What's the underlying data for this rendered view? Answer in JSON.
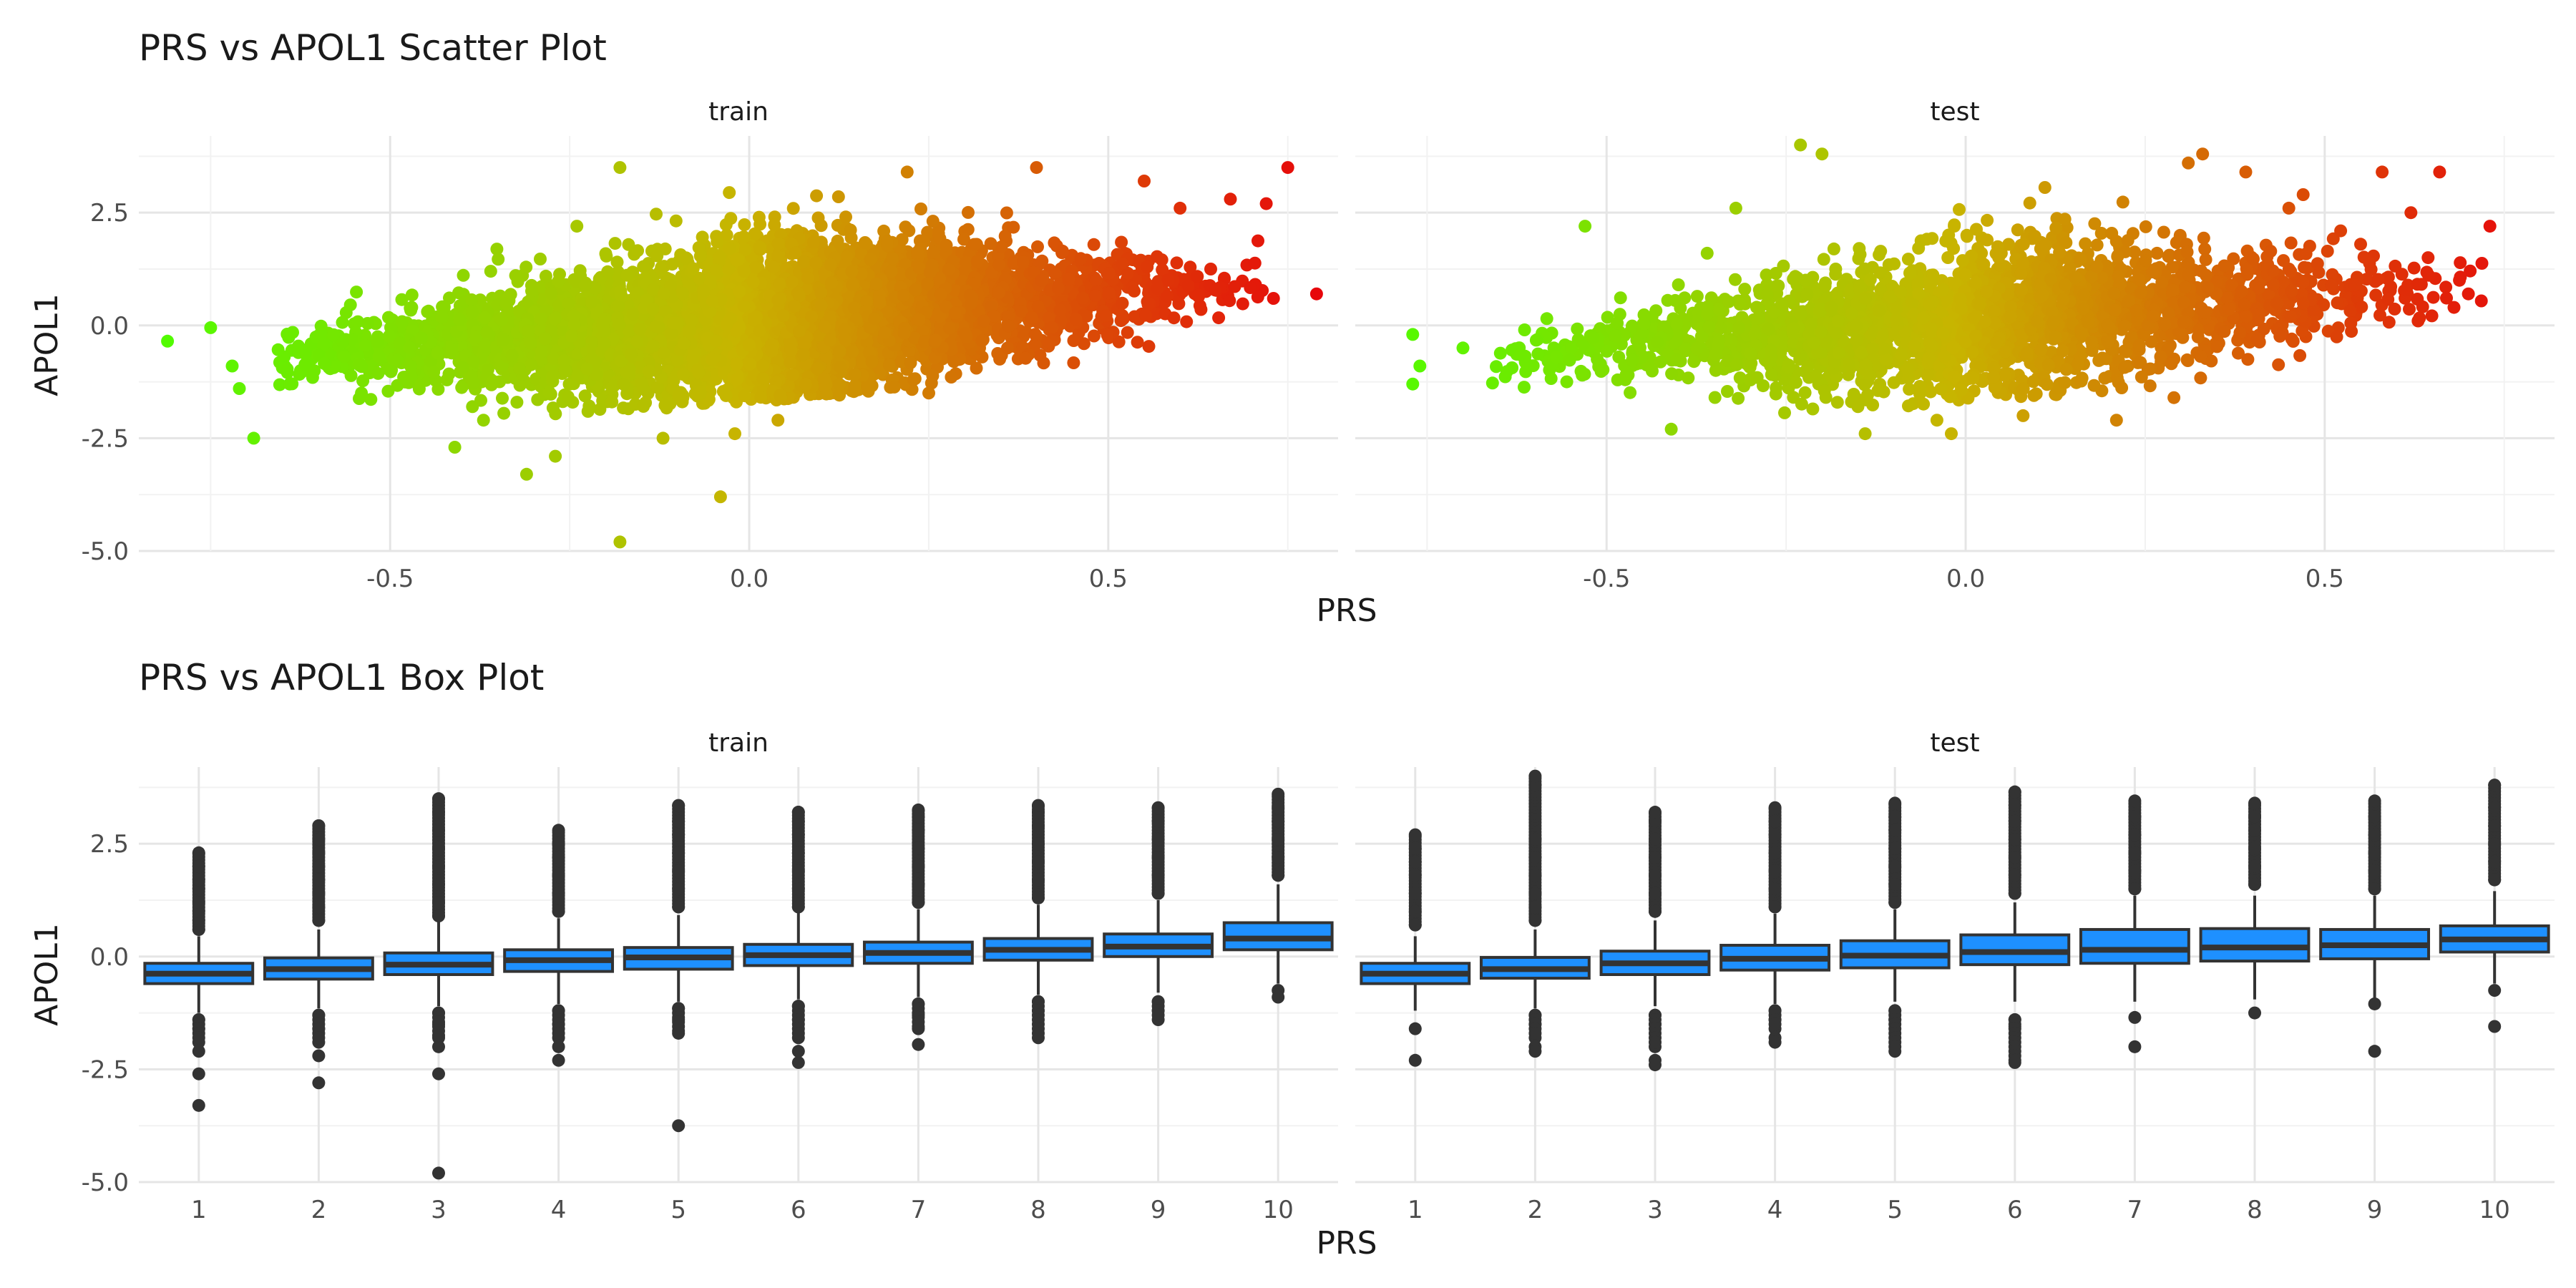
{
  "colors": {
    "low": "#4CFF00",
    "mid": "#C8B400",
    "high": "#E8000B",
    "box_fill": "#1E90FF",
    "box_line": "#333333"
  },
  "chart_data": [
    {
      "type": "scatter",
      "title": "PRS vs APOL1 Scatter Plot",
      "xlabel": "PRS",
      "ylabel": "APOL1",
      "xticks": [
        "-0.5",
        "0.0",
        "0.5"
      ],
      "xtick_values": [
        -0.5,
        0.0,
        0.5
      ],
      "yticks": [
        "-5.0",
        "-2.5",
        "0.0",
        "2.5"
      ],
      "ytick_values": [
        -5.0,
        -2.5,
        0.0,
        2.5
      ],
      "grid": true,
      "legend": "none",
      "color_by": "PRS",
      "panels": [
        {
          "name": "train",
          "xlim": [
            -0.85,
            0.82
          ],
          "ylim": [
            -5.0,
            4.2
          ],
          "n_points_approx": 8000,
          "trend": {
            "slope": 1.2,
            "intercept": 0.1
          },
          "points": [
            {
              "x": -0.81,
              "y": -0.35
            },
            {
              "x": -0.75,
              "y": -0.05
            },
            {
              "x": -0.72,
              "y": -0.9
            },
            {
              "x": -0.71,
              "y": -1.4
            },
            {
              "x": -0.69,
              "y": -2.5
            },
            {
              "x": -0.64,
              "y": -1.3
            },
            {
              "x": -0.54,
              "y": -1.5
            },
            {
              "x": -0.47,
              "y": 0.4
            },
            {
              "x": -0.41,
              "y": -2.7
            },
            {
              "x": -0.37,
              "y": -2.1
            },
            {
              "x": -0.36,
              "y": 1.2
            },
            {
              "x": -0.31,
              "y": -3.3
            },
            {
              "x": -0.27,
              "y": -2.9
            },
            {
              "x": -0.24,
              "y": 2.2
            },
            {
              "x": -0.18,
              "y": 3.5
            },
            {
              "x": -0.18,
              "y": -4.8
            },
            {
              "x": -0.12,
              "y": -2.5
            },
            {
              "x": -0.04,
              "y": -3.8
            },
            {
              "x": -0.02,
              "y": -2.4
            },
            {
              "x": 0.04,
              "y": -2.1
            },
            {
              "x": 0.22,
              "y": 3.4
            },
            {
              "x": 0.25,
              "y": -1.5
            },
            {
              "x": 0.4,
              "y": 3.5
            },
            {
              "x": 0.55,
              "y": 3.2
            },
            {
              "x": 0.6,
              "y": 2.6
            },
            {
              "x": 0.67,
              "y": 2.8
            },
            {
              "x": 0.72,
              "y": 2.7
            },
            {
              "x": 0.75,
              "y": 3.5
            },
            {
              "x": 0.73,
              "y": 0.6
            },
            {
              "x": 0.79,
              "y": 0.7
            }
          ]
        },
        {
          "name": "test",
          "xlim": [
            -0.85,
            0.82
          ],
          "ylim": [
            -5.0,
            4.2
          ],
          "n_points_approx": 3500,
          "trend": {
            "slope": 1.2,
            "intercept": 0.1
          },
          "points": [
            {
              "x": -0.77,
              "y": -0.2
            },
            {
              "x": -0.76,
              "y": -0.9
            },
            {
              "x": -0.77,
              "y": -1.3
            },
            {
              "x": -0.7,
              "y": -0.5
            },
            {
              "x": -0.62,
              "y": -0.65
            },
            {
              "x": -0.57,
              "y": -0.7
            },
            {
              "x": -0.53,
              "y": 2.2
            },
            {
              "x": -0.47,
              "y": -1.1
            },
            {
              "x": -0.4,
              "y": 0.9
            },
            {
              "x": -0.36,
              "y": 1.6
            },
            {
              "x": -0.32,
              "y": 2.6
            },
            {
              "x": -0.23,
              "y": 4.0
            },
            {
              "x": -0.41,
              "y": -2.3
            },
            {
              "x": -0.2,
              "y": 3.8
            },
            {
              "x": -0.15,
              "y": -1.8
            },
            {
              "x": -0.14,
              "y": -2.4
            },
            {
              "x": -0.04,
              "y": -2.1
            },
            {
              "x": -0.02,
              "y": -2.4
            },
            {
              "x": 0.08,
              "y": -2.0
            },
            {
              "x": 0.21,
              "y": -2.1
            },
            {
              "x": 0.29,
              "y": -1.6
            },
            {
              "x": 0.31,
              "y": 3.6
            },
            {
              "x": 0.33,
              "y": 3.8
            },
            {
              "x": 0.39,
              "y": 3.4
            },
            {
              "x": 0.45,
              "y": 2.6
            },
            {
              "x": 0.47,
              "y": 2.9
            },
            {
              "x": 0.55,
              "y": 1.8
            },
            {
              "x": 0.58,
              "y": 3.4
            },
            {
              "x": 0.62,
              "y": 2.5
            },
            {
              "x": 0.66,
              "y": 3.4
            },
            {
              "x": 0.63,
              "y": 0.1
            },
            {
              "x": 0.68,
              "y": 0.4
            },
            {
              "x": 0.7,
              "y": 0.7
            },
            {
              "x": 0.73,
              "y": 2.2
            }
          ]
        }
      ]
    },
    {
      "type": "box",
      "title": "PRS vs APOL1 Box Plot",
      "xlabel": "PRS",
      "ylabel": "APOL1",
      "categories": [
        "1",
        "2",
        "3",
        "4",
        "5",
        "6",
        "7",
        "8",
        "9",
        "10"
      ],
      "yticks": [
        "-5.0",
        "-2.5",
        "0.0",
        "2.5"
      ],
      "ytick_values": [
        -5.0,
        -2.5,
        0.0,
        2.5
      ],
      "ylim": [
        -5.0,
        4.2
      ],
      "grid": true,
      "panels": [
        {
          "name": "train",
          "boxes": [
            {
              "q1": -0.6,
              "median": -0.38,
              "q3": -0.15,
              "whisker_low": -1.25,
              "whisker_high": 0.45,
              "outliers_high": [
                0.6,
                0.8,
                1.0,
                1.2,
                1.5,
                1.7,
                2.0,
                2.3
              ],
              "outliers_low": [
                -1.4,
                -1.6,
                -1.9,
                -2.1,
                -2.6,
                -3.3
              ]
            },
            {
              "q1": -0.5,
              "median": -0.28,
              "q3": -0.03,
              "whisker_low": -1.15,
              "whisker_high": 0.6,
              "outliers_high": [
                0.8,
                1.1,
                1.4,
                1.7,
                2.0,
                2.3,
                2.6,
                2.9
              ],
              "outliers_low": [
                -1.3,
                -1.6,
                -1.9,
                -2.2,
                -2.8
              ]
            },
            {
              "q1": -0.4,
              "median": -0.18,
              "q3": 0.08,
              "whisker_low": -1.1,
              "whisker_high": 0.78,
              "outliers_high": [
                0.9,
                1.2,
                1.6,
                2.0,
                2.4,
                2.8,
                3.2,
                3.5
              ],
              "outliers_low": [
                -1.25,
                -1.5,
                -1.8,
                -2.0,
                -2.6,
                -4.8
              ]
            },
            {
              "q1": -0.33,
              "median": -0.08,
              "q3": 0.15,
              "whisker_low": -1.05,
              "whisker_high": 0.85,
              "outliers_high": [
                1.0,
                1.4,
                1.8,
                2.2,
                2.5,
                2.8
              ],
              "outliers_low": [
                -1.2,
                -1.5,
                -1.8,
                -2.0,
                -2.3
              ]
            },
            {
              "q1": -0.28,
              "median": -0.02,
              "q3": 0.2,
              "whisker_low": -1.0,
              "whisker_high": 0.92,
              "outliers_high": [
                1.1,
                1.5,
                1.9,
                2.3,
                2.7,
                3.0,
                3.35
              ],
              "outliers_low": [
                -1.15,
                -1.4,
                -1.7,
                -3.75
              ]
            },
            {
              "q1": -0.2,
              "median": 0.03,
              "q3": 0.27,
              "whisker_low": -0.95,
              "whisker_high": 0.98,
              "outliers_high": [
                1.1,
                1.5,
                1.9,
                2.3,
                2.7,
                3.0,
                3.2
              ],
              "outliers_low": [
                -1.1,
                -1.4,
                -1.8,
                -2.1,
                -2.35
              ]
            },
            {
              "q1": -0.15,
              "median": 0.08,
              "q3": 0.32,
              "whisker_low": -0.9,
              "whisker_high": 1.05,
              "outliers_high": [
                1.2,
                1.6,
                2.0,
                2.4,
                2.8,
                3.1,
                3.25
              ],
              "outliers_low": [
                -1.05,
                -1.3,
                -1.6,
                -1.95
              ]
            },
            {
              "q1": -0.08,
              "median": 0.15,
              "q3": 0.4,
              "whisker_low": -0.85,
              "whisker_high": 1.15,
              "outliers_high": [
                1.3,
                1.7,
                2.1,
                2.5,
                2.9,
                3.2,
                3.35
              ],
              "outliers_low": [
                -1.0,
                -1.2,
                -1.8
              ]
            },
            {
              "q1": 0.0,
              "median": 0.22,
              "q3": 0.5,
              "whisker_low": -0.8,
              "whisker_high": 1.25,
              "outliers_high": [
                1.4,
                1.8,
                2.2,
                2.6,
                3.0,
                3.3
              ],
              "outliers_low": [
                -1.0,
                -1.2,
                -1.4
              ]
            },
            {
              "q1": 0.15,
              "median": 0.4,
              "q3": 0.75,
              "whisker_low": -0.6,
              "whisker_high": 1.6,
              "outliers_high": [
                1.8,
                2.2,
                2.6,
                3.0,
                3.3,
                3.6
              ],
              "outliers_low": [
                -0.75,
                -0.9
              ]
            }
          ]
        },
        {
          "name": "test",
          "boxes": [
            {
              "q1": -0.6,
              "median": -0.38,
              "q3": -0.15,
              "whisker_low": -1.2,
              "whisker_high": 0.45,
              "outliers_high": [
                0.7,
                1.0,
                1.4,
                1.8,
                2.1,
                2.4,
                2.7
              ],
              "outliers_low": [
                -1.6,
                -2.3
              ]
            },
            {
              "q1": -0.48,
              "median": -0.28,
              "q3": -0.02,
              "whisker_low": -1.15,
              "whisker_high": 0.6,
              "outliers_high": [
                0.8,
                1.1,
                1.4,
                1.8,
                2.2,
                2.6,
                3.8,
                4.0
              ],
              "outliers_low": [
                -1.3,
                -1.5,
                -1.8,
                -2.0,
                -2.1
              ]
            },
            {
              "q1": -0.4,
              "median": -0.15,
              "q3": 0.12,
              "whisker_low": -1.1,
              "whisker_high": 0.8,
              "outliers_high": [
                1.0,
                1.4,
                1.8,
                2.2,
                2.6,
                3.0,
                3.2
              ],
              "outliers_low": [
                -1.3,
                -1.5,
                -2.0,
                -2.3,
                -2.4
              ]
            },
            {
              "q1": -0.3,
              "median": -0.05,
              "q3": 0.25,
              "whisker_low": -1.05,
              "whisker_high": 0.95,
              "outliers_high": [
                1.1,
                1.5,
                1.9,
                2.3,
                2.7,
                3.0,
                3.3
              ],
              "outliers_low": [
                -1.2,
                -1.4,
                -1.6,
                -1.8,
                -1.9
              ]
            },
            {
              "q1": -0.25,
              "median": 0.02,
              "q3": 0.35,
              "whisker_low": -1.0,
              "whisker_high": 1.05,
              "outliers_high": [
                1.2,
                1.6,
                2.0,
                2.4,
                2.8,
                3.1,
                3.4
              ],
              "outliers_low": [
                -1.2,
                -1.4,
                -2.1
              ]
            },
            {
              "q1": -0.18,
              "median": 0.1,
              "q3": 0.48,
              "whisker_low": -1.0,
              "whisker_high": 1.2,
              "outliers_high": [
                1.4,
                1.8,
                2.2,
                2.6,
                3.0,
                3.35,
                3.65
              ],
              "outliers_low": [
                -1.4,
                -1.55,
                -2.35
              ]
            },
            {
              "q1": -0.15,
              "median": 0.15,
              "q3": 0.6,
              "whisker_low": -1.0,
              "whisker_high": 1.35,
              "outliers_high": [
                1.5,
                1.9,
                2.3,
                2.7,
                3.1,
                3.45
              ],
              "outliers_low": [
                -1.35,
                -2.0
              ]
            },
            {
              "q1": -0.1,
              "median": 0.2,
              "q3": 0.62,
              "whisker_low": -0.95,
              "whisker_high": 1.35,
              "outliers_high": [
                1.6,
                2.0,
                2.4,
                2.8,
                3.1,
                3.4
              ],
              "outliers_low": [
                -1.25
              ]
            },
            {
              "q1": -0.05,
              "median": 0.25,
              "q3": 0.6,
              "whisker_low": -1.0,
              "whisker_high": 1.35,
              "outliers_high": [
                1.5,
                1.9,
                2.3,
                2.7,
                3.1,
                3.45
              ],
              "outliers_low": [
                -1.05,
                -2.1
              ]
            },
            {
              "q1": 0.1,
              "median": 0.38,
              "q3": 0.68,
              "whisker_low": -0.6,
              "whisker_high": 1.45,
              "outliers_high": [
                1.7,
                2.1,
                2.5,
                2.9,
                3.3,
                3.8
              ],
              "outliers_low": [
                -0.75,
                -1.55
              ]
            }
          ]
        }
      ]
    }
  ]
}
